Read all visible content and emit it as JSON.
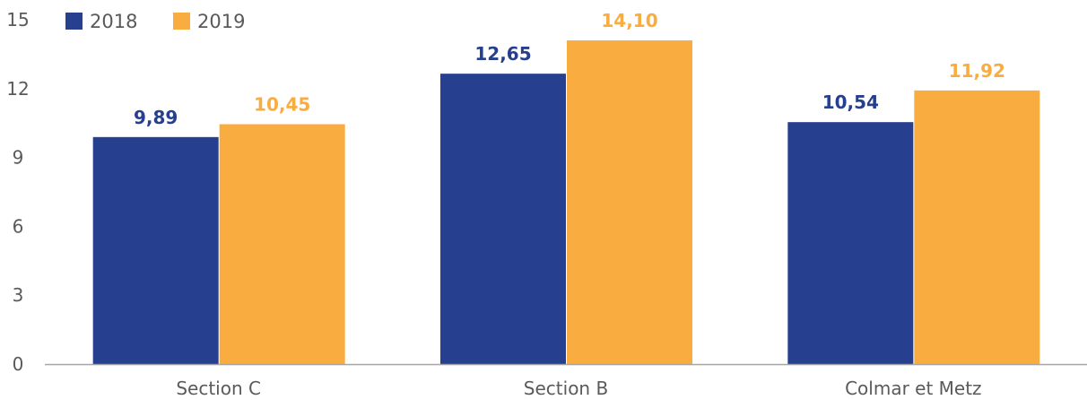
{
  "chart_data": {
    "type": "bar",
    "categories": [
      "Section C",
      "Section B",
      "Colmar et Metz"
    ],
    "series": [
      {
        "name": "2018",
        "values": [
          9.89,
          12.65,
          10.54
        ],
        "labels": [
          "9,89",
          "12,65",
          "10,54"
        ],
        "color": "#263f8e"
      },
      {
        "name": "2019",
        "values": [
          10.45,
          14.1,
          11.92
        ],
        "labels": [
          "10,45",
          "14,10",
          "11,92"
        ],
        "color": "#f9ac40"
      }
    ],
    "yticks": [
      "0",
      "3",
      "6",
      "9",
      "12",
      "15"
    ],
    "ylim": [
      0,
      15
    ],
    "grid": false,
    "legend": "top-left",
    "axis_color": "#a6a6a6",
    "tick_color": "#5a5a5a"
  }
}
